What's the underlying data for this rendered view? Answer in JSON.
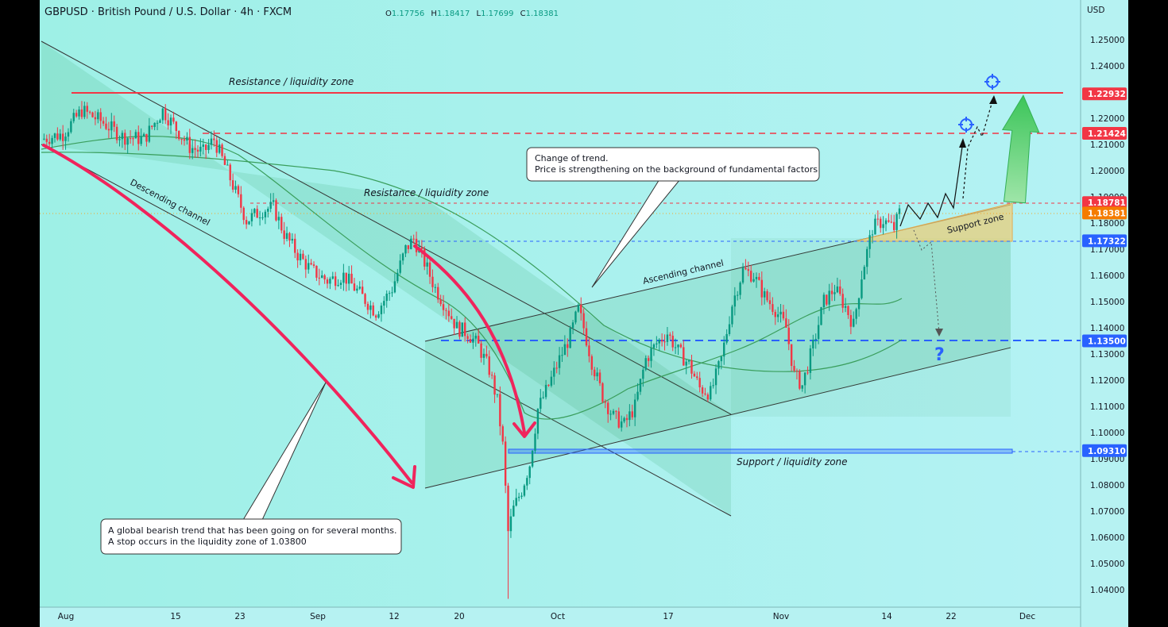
{
  "header": {
    "title": "GBPUSD · British Pound / U.S. Dollar · 4h · FXCM",
    "ohlc": {
      "o_label": "O",
      "o": "1.17756",
      "h_label": "H",
      "h": "1.18417",
      "l_label": "L",
      "l": "1.17699",
      "c_label": "C",
      "c": "1.18381"
    },
    "currency": "USD"
  },
  "colors": {
    "background": "#aaf0f0",
    "up": "#089981",
    "down": "#f23645",
    "resistance": "#f23645",
    "support_blue": "#2962ff",
    "channel_fill": "#2e9e5a",
    "arrow_pink": "#f0245c"
  },
  "chart_data": {
    "type": "candlestick",
    "symbol": "GBPUSD",
    "timeframe": "4h",
    "x_axis_labels": [
      "Aug",
      "15",
      "23",
      "Sep",
      "12",
      "20",
      "Oct",
      "17",
      "Nov",
      "14",
      "22",
      "Dec"
    ],
    "y_ticks": [
      "1.25000",
      "1.24000",
      "1.23000",
      "1.22000",
      "1.21000",
      "1.20000",
      "1.19000",
      "1.18000",
      "1.17000",
      "1.16000",
      "1.15000",
      "1.14000",
      "1.13000",
      "1.12000",
      "1.11000",
      "1.10000",
      "1.09000",
      "1.08000",
      "1.07000",
      "1.06000",
      "1.05000",
      "1.04000"
    ],
    "ylim": [
      1.0345,
      1.2585
    ],
    "price_levels": [
      {
        "name": "resistance-top",
        "value": 1.22932,
        "label": "1.22932",
        "color": "#f23645"
      },
      {
        "name": "resistance-mid",
        "value": 1.21424,
        "label": "1.21424",
        "color": "#f23645"
      },
      {
        "name": "resistance-low",
        "value": 1.18781,
        "label": "1.18781",
        "color": "#f23645"
      },
      {
        "name": "last-price",
        "value": 1.18381,
        "label": "1.18381",
        "color": "#f57c00"
      },
      {
        "name": "breakout-level",
        "value": 1.17322,
        "label": "1.17322",
        "color": "#2962ff"
      },
      {
        "name": "mid-support",
        "value": 1.135,
        "label": "1.13500",
        "color": "#2962ff"
      },
      {
        "name": "support-liquidity",
        "value": 1.0931,
        "label": "1.09310",
        "color": "#2962ff"
      }
    ],
    "close_path": [
      [
        0,
        1.212
      ],
      [
        8,
        1.214
      ],
      [
        15,
        1.223
      ],
      [
        22,
        1.219
      ],
      [
        30,
        1.213
      ],
      [
        38,
        1.212
      ],
      [
        45,
        1.223
      ],
      [
        50,
        1.216
      ],
      [
        55,
        1.209
      ],
      [
        60,
        1.207
      ],
      [
        64,
        1.212
      ],
      [
        70,
        1.197
      ],
      [
        76,
        1.181
      ],
      [
        82,
        1.185
      ],
      [
        86,
        1.186
      ],
      [
        90,
        1.176
      ],
      [
        95,
        1.168
      ],
      [
        100,
        1.162
      ],
      [
        106,
        1.158
      ],
      [
        112,
        1.16
      ],
      [
        118,
        1.153
      ],
      [
        124,
        1.146
      ],
      [
        130,
        1.155
      ],
      [
        135,
        1.17
      ],
      [
        138,
        1.174
      ],
      [
        142,
        1.165
      ],
      [
        146,
        1.155
      ],
      [
        150,
        1.148
      ],
      [
        154,
        1.14
      ],
      [
        158,
        1.138
      ],
      [
        162,
        1.133
      ],
      [
        166,
        1.124
      ],
      [
        169,
        1.112
      ],
      [
        171,
        1.095
      ],
      [
        173,
        1.062
      ],
      [
        175,
        1.071
      ],
      [
        178,
        1.078
      ],
      [
        181,
        1.088
      ],
      [
        184,
        1.109
      ],
      [
        188,
        1.118
      ],
      [
        192,
        1.128
      ],
      [
        196,
        1.137
      ],
      [
        199,
        1.147
      ],
      [
        201,
        1.14
      ],
      [
        204,
        1.127
      ],
      [
        208,
        1.114
      ],
      [
        212,
        1.106
      ],
      [
        216,
        1.103
      ],
      [
        220,
        1.11
      ],
      [
        224,
        1.128
      ],
      [
        228,
        1.134
      ],
      [
        232,
        1.138
      ],
      [
        236,
        1.131
      ],
      [
        240,
        1.126
      ],
      [
        244,
        1.117
      ],
      [
        248,
        1.115
      ],
      [
        252,
        1.128
      ],
      [
        256,
        1.149
      ],
      [
        260,
        1.162
      ],
      [
        264,
        1.16
      ],
      [
        268,
        1.152
      ],
      [
        272,
        1.147
      ],
      [
        276,
        1.14
      ],
      [
        279,
        1.122
      ],
      [
        282,
        1.118
      ],
      [
        286,
        1.133
      ],
      [
        290,
        1.15
      ],
      [
        294,
        1.155
      ],
      [
        298,
        1.148
      ],
      [
        301,
        1.141
      ],
      [
        304,
        1.16
      ],
      [
        308,
        1.178
      ],
      [
        312,
        1.181
      ],
      [
        316,
        1.178
      ],
      [
        318,
        1.184
      ]
    ]
  },
  "annotations": {
    "resistance_top_label": "Resistance / liquidity zone",
    "resistance_mid_label": "Resistance / liquidity zone",
    "support_label": "Support / liquidity zone",
    "support_zone_label": "Support zone",
    "descending_channel_label": "Descending channel",
    "ascending_channel_label": "Ascending channel",
    "note_trend_change_line1": "Change of trend.",
    "note_trend_change_line2": "Price is strengthening on the background of fundamental factors",
    "note_bearish_line1": "A global bearish trend that has been going on for several months.",
    "note_bearish_line2": "A stop occurs in the liquidity zone of 1.03800",
    "question_mark": "?"
  }
}
